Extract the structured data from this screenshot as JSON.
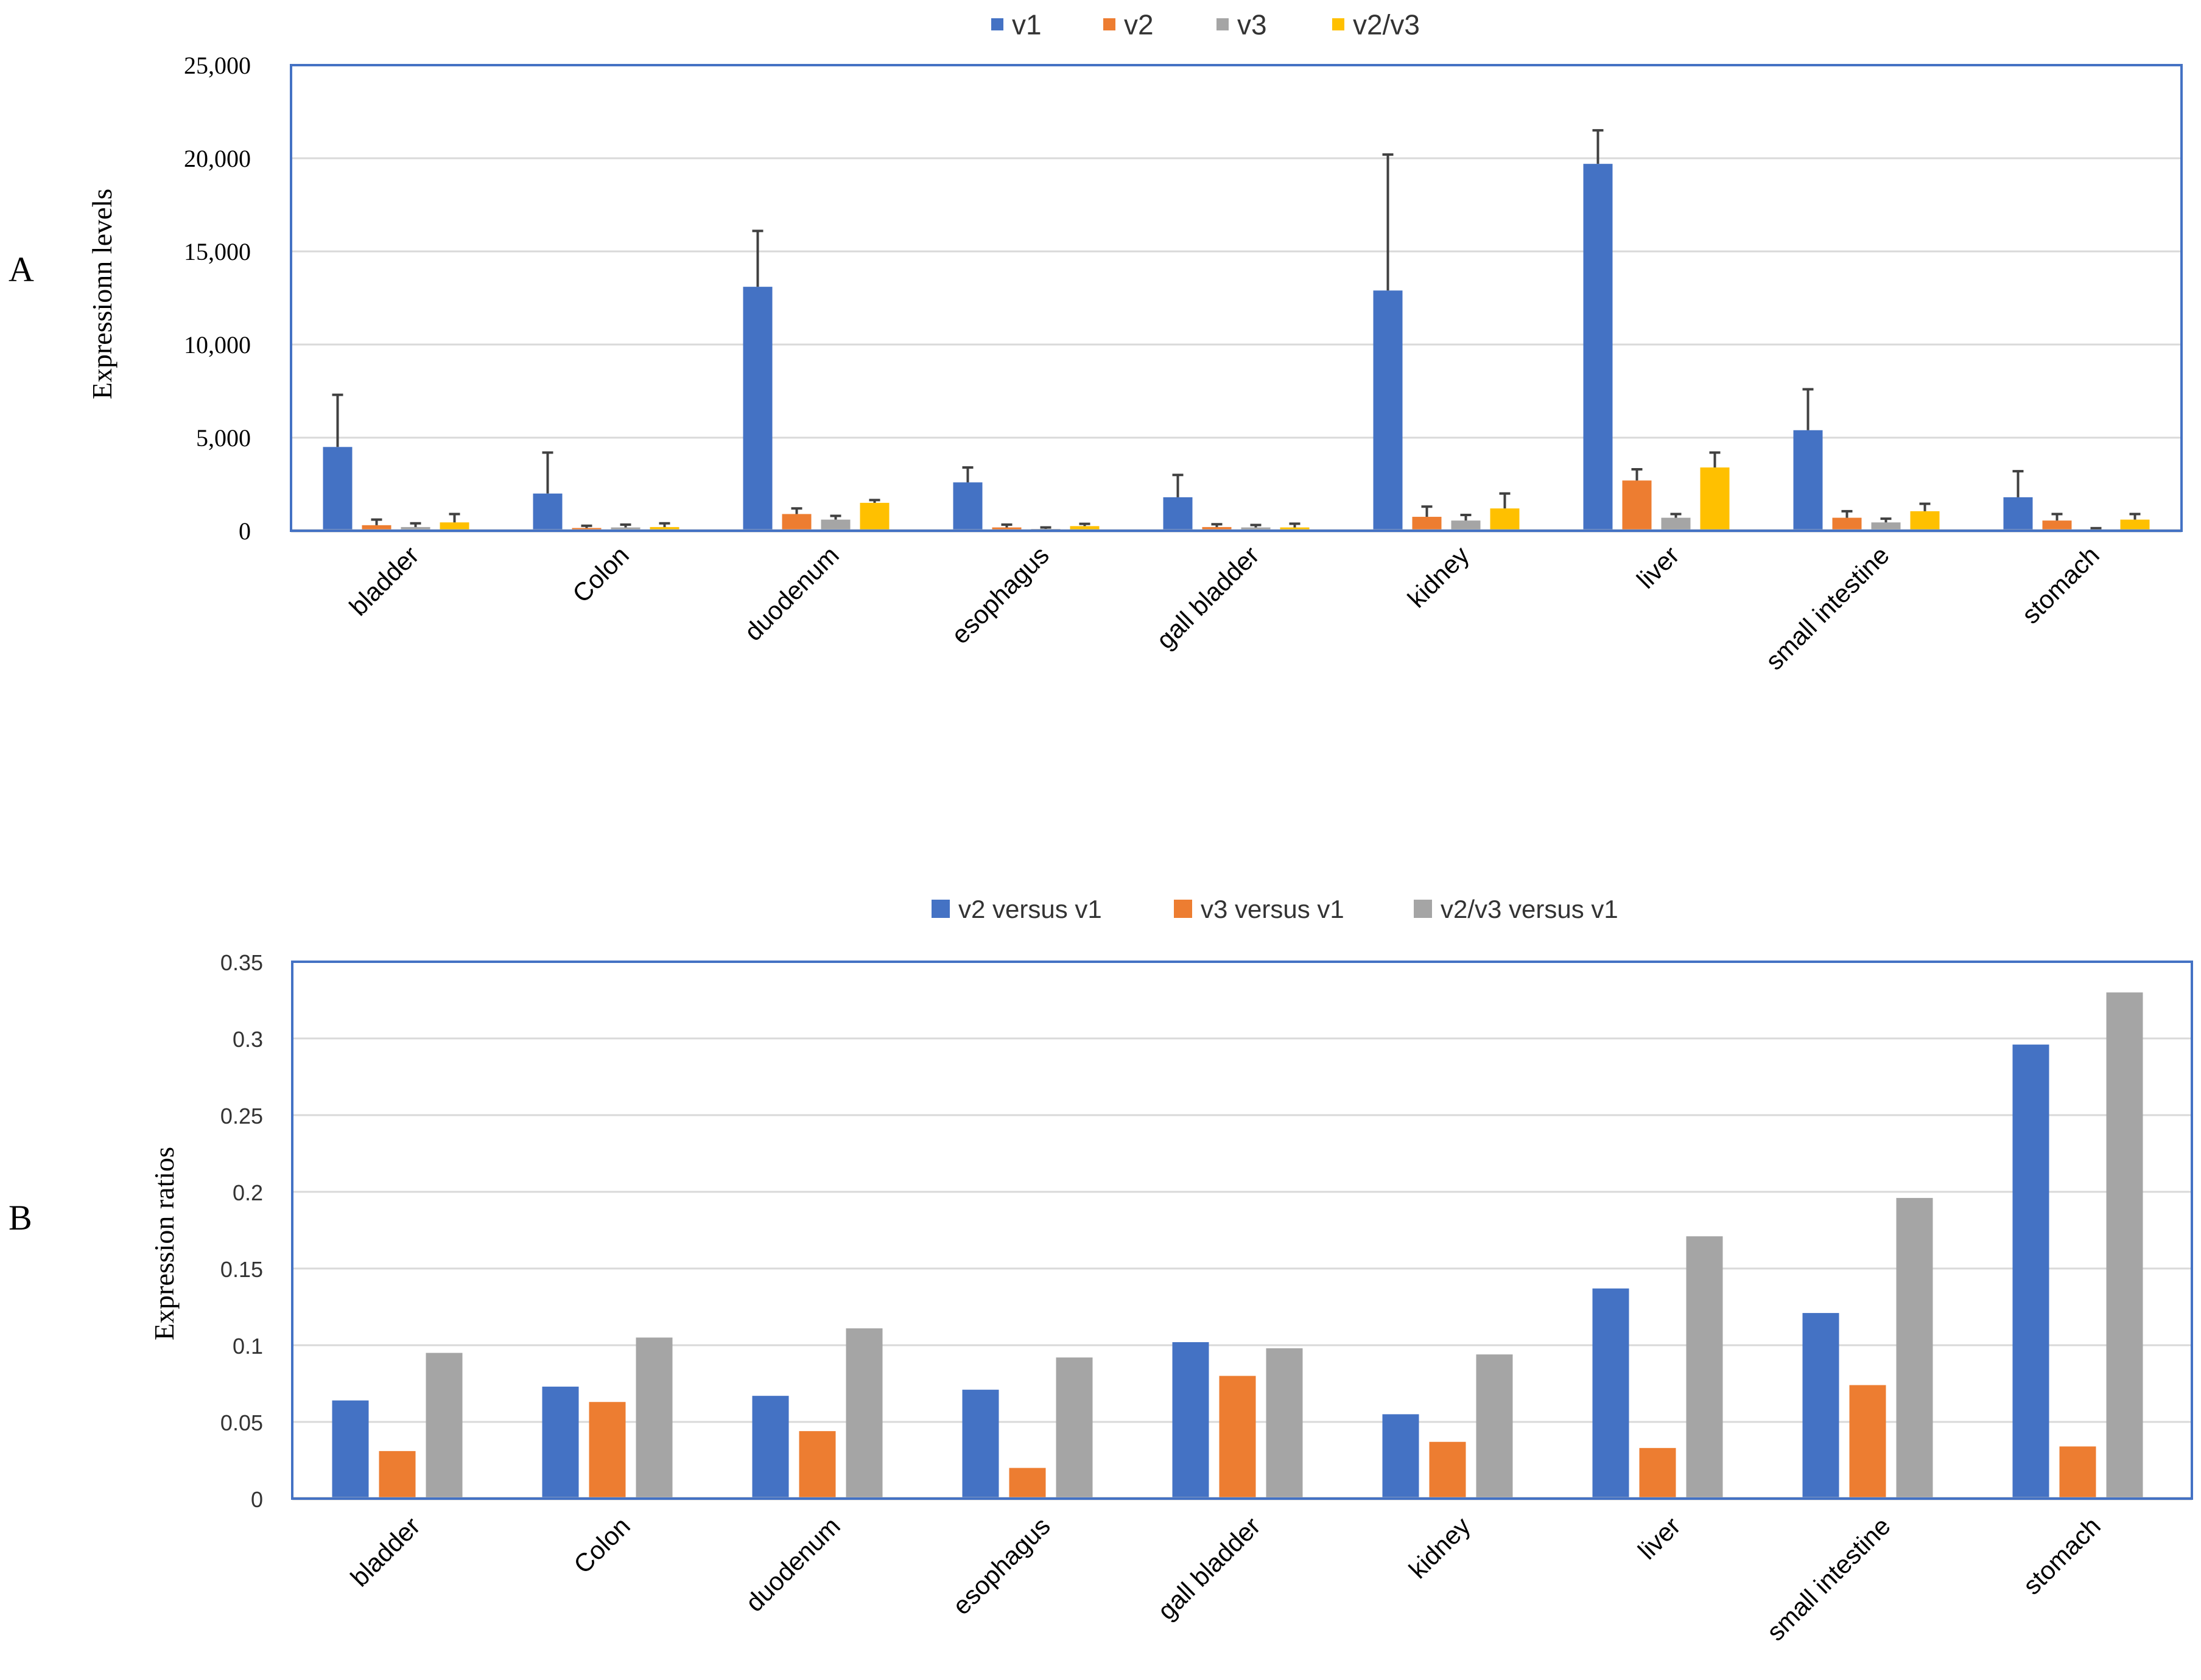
{
  "panels": {
    "a_label": "A",
    "b_label": "B"
  },
  "colors": {
    "blue": "#4472c4",
    "orange": "#ed7d31",
    "gray": "#a5a5a5",
    "yellow": "#ffc000"
  },
  "chart_data": [
    {
      "type": "bar",
      "panel": "A",
      "title": "",
      "xlabel": "",
      "ylabel": "Expressionn levels",
      "ylim": [
        0,
        25000
      ],
      "yticks": [
        0,
        5000,
        10000,
        15000,
        20000,
        25000
      ],
      "ytick_labels": [
        "0",
        "5,000",
        "10,000",
        "15,000",
        "20,000",
        "25,000"
      ],
      "grid": true,
      "legend_position": "top-center",
      "categories": [
        "bladder",
        "Colon",
        "duodenum",
        "esophagus",
        "gall bladder",
        "kidney",
        "liver",
        "small intestine",
        "stomach"
      ],
      "series": [
        {
          "name": "v1",
          "color": "#4472c4",
          "values": [
            4500,
            2000,
            13100,
            2600,
            1800,
            12900,
            19700,
            5400,
            1800
          ],
          "errors": [
            2800,
            2200,
            3000,
            800,
            1200,
            7300,
            1800,
            2200,
            1400
          ]
        },
        {
          "name": "v2",
          "color": "#ed7d31",
          "values": [
            300,
            150,
            900,
            180,
            200,
            750,
            2700,
            700,
            550
          ],
          "errors": [
            300,
            120,
            300,
            150,
            150,
            550,
            600,
            350,
            350
          ]
        },
        {
          "name": "v3",
          "color": "#a5a5a5",
          "values": [
            200,
            180,
            600,
            100,
            180,
            550,
            700,
            450,
            60
          ],
          "errors": [
            200,
            150,
            200,
            80,
            130,
            300,
            200,
            200,
            80
          ]
        },
        {
          "name": "v2/v3",
          "color": "#ffc000",
          "values": [
            450,
            200,
            1500,
            250,
            180,
            1200,
            3400,
            1050,
            600
          ],
          "errors": [
            450,
            200,
            150,
            120,
            200,
            800,
            800,
            400,
            300
          ]
        }
      ]
    },
    {
      "type": "bar",
      "panel": "B",
      "title": "",
      "xlabel": "",
      "ylabel": "Expression ratios",
      "ylim": [
        0,
        0.35
      ],
      "yticks": [
        0,
        0.05,
        0.1,
        0.15,
        0.2,
        0.25,
        0.3,
        0.35
      ],
      "ytick_labels": [
        "0",
        "0.05",
        "0.1",
        "0.15",
        "0.2",
        "0.25",
        "0.3",
        "0.35"
      ],
      "grid": true,
      "legend_position": "top-center",
      "categories": [
        "bladder",
        "Colon",
        "duodenum",
        "esophagus",
        "gall bladder",
        "kidney",
        "liver",
        "small intestine",
        "stomach"
      ],
      "series": [
        {
          "name": "v2 versus v1",
          "color": "#4472c4",
          "values": [
            0.064,
            0.073,
            0.067,
            0.071,
            0.102,
            0.055,
            0.137,
            0.121,
            0.296
          ]
        },
        {
          "name": "v3 versus v1",
          "color": "#ed7d31",
          "values": [
            0.031,
            0.063,
            0.044,
            0.02,
            0.08,
            0.037,
            0.033,
            0.074,
            0.034
          ]
        },
        {
          "name": "v2/v3 versus v1",
          "color": "#a5a5a5",
          "values": [
            0.095,
            0.105,
            0.111,
            0.092,
            0.098,
            0.094,
            0.171,
            0.196,
            0.33
          ]
        }
      ]
    }
  ]
}
